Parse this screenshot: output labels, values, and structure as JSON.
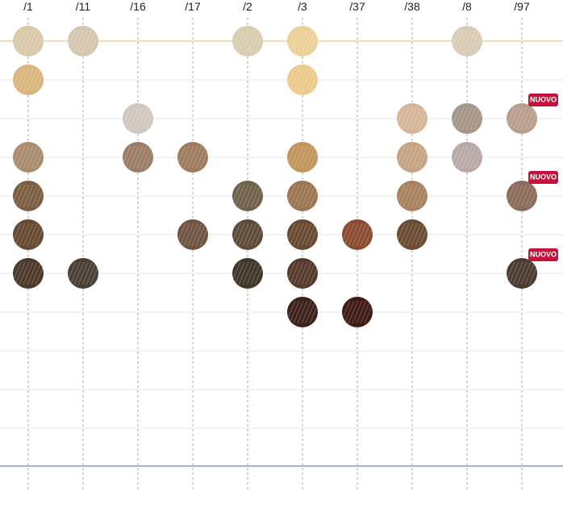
{
  "columns": [
    {
      "label": "/1",
      "swatches": [
        {
          "color": "#dac9a9"
        },
        {
          "color": "#d9b67c"
        },
        null,
        {
          "color": "#a98b6d"
        },
        {
          "color": "#7b5d41"
        },
        {
          "color": "#654933"
        },
        {
          "color": "#4b3929"
        },
        null
      ]
    },
    {
      "label": "/11",
      "swatches": [
        {
          "color": "#d5c7af"
        },
        null,
        null,
        null,
        null,
        null,
        {
          "color": "#4b3f35"
        },
        null
      ]
    },
    {
      "label": "/16",
      "swatches": [
        null,
        null,
        {
          "color": "#d0c7bf"
        },
        {
          "color": "#9b7d67"
        },
        null,
        null,
        null,
        null
      ]
    },
    {
      "label": "/17",
      "swatches": [
        null,
        null,
        null,
        {
          "color": "#9d7b5f"
        },
        null,
        {
          "color": "#6f5441"
        },
        null,
        null
      ]
    },
    {
      "label": "/2",
      "swatches": [
        {
          "color": "#d9cdb1"
        },
        null,
        null,
        null,
        {
          "color": "#6f614b"
        },
        {
          "color": "#5d4b37"
        },
        {
          "color": "#413729"
        },
        null
      ]
    },
    {
      "label": "/3",
      "swatches": [
        {
          "color": "#edd097"
        },
        {
          "color": "#ecca8b"
        },
        null,
        {
          "color": "#c1955b"
        },
        {
          "color": "#9b7551"
        },
        {
          "color": "#674931"
        },
        {
          "color": "#55392b"
        },
        {
          "color": "#3b2119"
        }
      ]
    },
    {
      "label": "/37",
      "swatches": [
        null,
        null,
        null,
        null,
        null,
        {
          "color": "#8b4b31"
        },
        null,
        {
          "color": "#3f1b15"
        }
      ]
    },
    {
      "label": "/38",
      "swatches": [
        null,
        null,
        {
          "color": "#d5b797"
        },
        {
          "color": "#c5a383"
        },
        {
          "color": "#a9815f"
        },
        {
          "color": "#6b4b31"
        },
        null,
        null
      ]
    },
    {
      "label": "/8",
      "swatches": [
        {
          "color": "#d9ccb5"
        },
        null,
        {
          "color": "#a59587"
        },
        {
          "color": "#b9a9a5"
        },
        null,
        null,
        null,
        null
      ]
    },
    {
      "label": "/97",
      "swatches": [
        null,
        null,
        {
          "color": "#b99d8d",
          "badge": "NUOVO"
        },
        null,
        {
          "color": "#8b6b59",
          "badge": "NUOVO"
        },
        null,
        {
          "color": "#4b3b31",
          "badge": "NUOVO"
        },
        null
      ]
    }
  ]
}
